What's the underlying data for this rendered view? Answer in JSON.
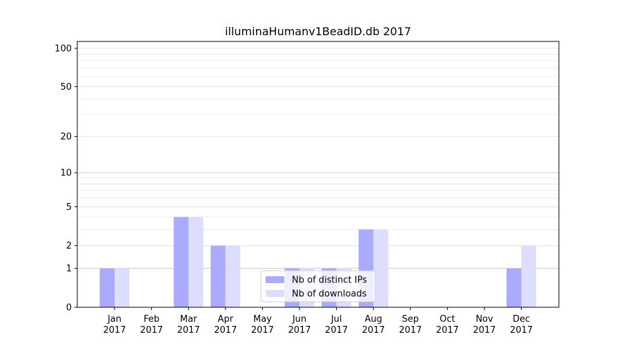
{
  "chart_data": {
    "type": "bar",
    "title": "illuminaHumanv1BeadID.db 2017",
    "xlabel": "",
    "ylabel": "",
    "y_scale": "log(1+y)",
    "ylim": [
      0,
      120
    ],
    "y_ticks": [
      0,
      1,
      2,
      5,
      10,
      20,
      50,
      100
    ],
    "y_tick_labels": [
      "0",
      "1",
      "2",
      "5",
      "10",
      "20",
      "50",
      "100"
    ],
    "grid": "horizontal minor lines, light gray",
    "categories": [
      "Jan\n2017",
      "Feb\n2017",
      "Mar\n2017",
      "Apr\n2017",
      "May\n2017",
      "Jun\n2017",
      "Jul\n2017",
      "Aug\n2017",
      "Sep\n2017",
      "Oct\n2017",
      "Nov\n2017",
      "Dec\n2017"
    ],
    "series": [
      {
        "name": "Nb of distinct IPs",
        "color": "#aaaaff",
        "values": [
          1,
          0,
          4,
          2,
          0,
          1,
          1,
          3,
          0,
          0,
          0,
          1
        ]
      },
      {
        "name": "Nb of downloads",
        "color": "#ddddff",
        "values": [
          1,
          0,
          4,
          2,
          0,
          1,
          1,
          3,
          0,
          0,
          0,
          2
        ]
      }
    ],
    "legend_position": "lower-center"
  }
}
